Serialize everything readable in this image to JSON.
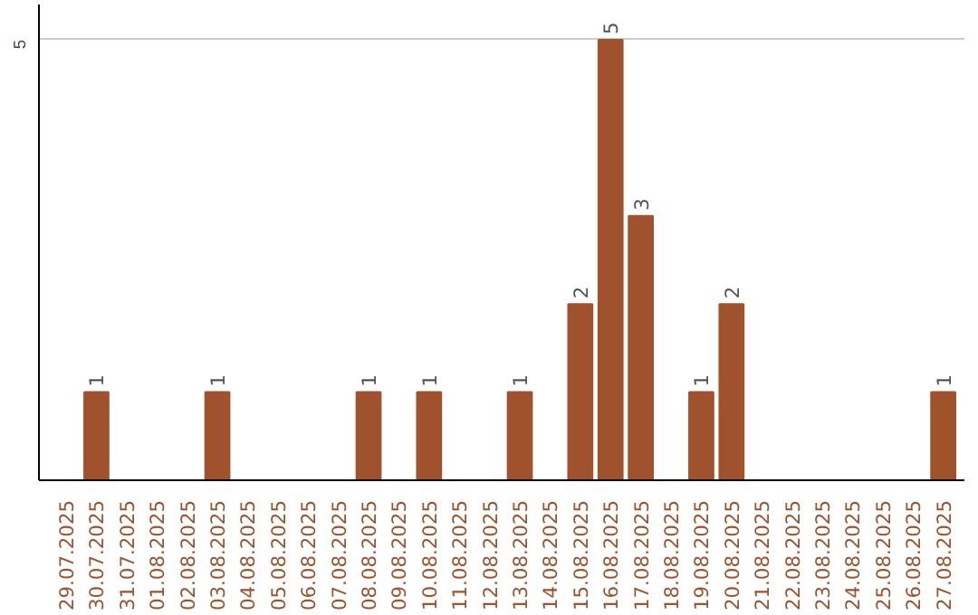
{
  "chart_data": {
    "type": "bar",
    "categories": [
      "29.07.2025",
      "30.07.2025",
      "31.07.2025",
      "01.08.2025",
      "02.08.2025",
      "03.08.2025",
      "04.08.2025",
      "05.08.2025",
      "06.08.2025",
      "07.08.2025",
      "08.08.2025",
      "09.08.2025",
      "10.08.2025",
      "11.08.2025",
      "12.08.2025",
      "13.08.2025",
      "14.08.2025",
      "15.08.2025",
      "16.08.2025",
      "17.08.2025",
      "18.08.2025",
      "19.08.2025",
      "20.08.2025",
      "21.08.2025",
      "22.08.2025",
      "23.08.2025",
      "24.08.2025",
      "25.08.2025",
      "26.08.2025",
      "27.08.2025"
    ],
    "values": [
      0,
      1,
      0,
      0,
      0,
      1,
      0,
      0,
      0,
      0,
      1,
      0,
      1,
      0,
      0,
      1,
      0,
      2,
      5,
      3,
      0,
      1,
      2,
      0,
      0,
      0,
      0,
      0,
      0,
      1
    ],
    "value_labels": [
      null,
      "1",
      null,
      null,
      null,
      "1",
      null,
      null,
      null,
      null,
      "1",
      null,
      "1",
      null,
      null,
      "1",
      null,
      "2",
      "5",
      "3",
      null,
      "1",
      "2",
      null,
      null,
      null,
      null,
      null,
      null,
      "1"
    ],
    "color": "#a0522d",
    "ylim": [
      0,
      5.4
    ],
    "yticks": [
      5
    ],
    "grid": "y"
  }
}
